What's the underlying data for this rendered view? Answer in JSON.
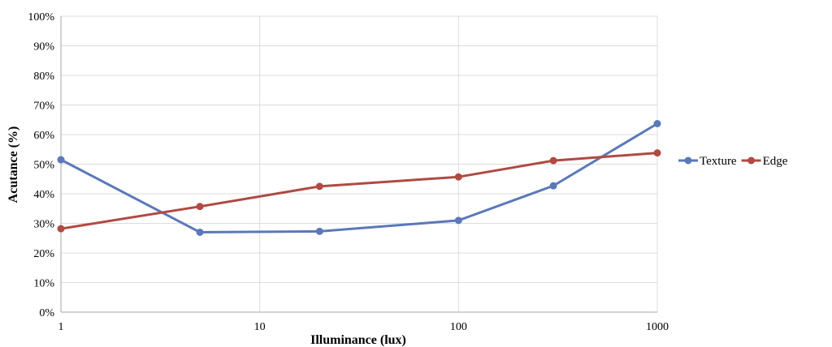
{
  "chart_data": {
    "type": "line",
    "title": "",
    "xlabel": "Illuminance (lux)",
    "ylabel": "Acutance (%)",
    "x_scale": "log",
    "xlim": [
      1,
      1000
    ],
    "ylim": [
      0,
      100
    ],
    "x_ticks": [
      1,
      10,
      100,
      1000
    ],
    "x_tick_labels": [
      "1",
      "10",
      "100",
      "1000"
    ],
    "y_ticks": [
      0,
      10,
      20,
      30,
      40,
      50,
      60,
      70,
      80,
      90,
      100
    ],
    "y_tick_labels": [
      "0%",
      "10%",
      "20%",
      "30%",
      "40%",
      "50%",
      "60%",
      "70%",
      "80%",
      "90%",
      "100%"
    ],
    "grid": true,
    "legend_position": "right",
    "series": [
      {
        "name": "Texture",
        "color": "#5b78b8",
        "x": [
          1,
          5,
          20,
          100,
          300,
          1000
        ],
        "values": [
          51.5,
          27.0,
          27.3,
          31.0,
          42.7,
          63.7
        ]
      },
      {
        "name": "Edge",
        "color": "#b04a43",
        "x": [
          1,
          5,
          20,
          100,
          300,
          1000
        ],
        "values": [
          28.2,
          35.7,
          42.5,
          45.7,
          51.2,
          53.8
        ]
      }
    ]
  }
}
